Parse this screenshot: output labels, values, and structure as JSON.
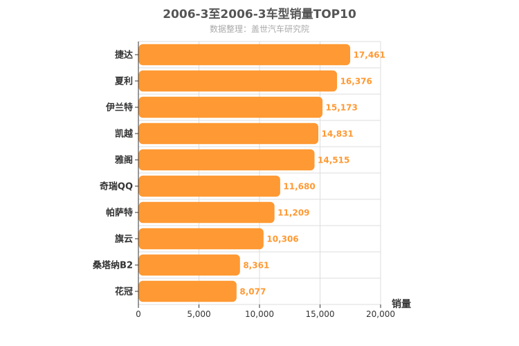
{
  "chart_data": {
    "type": "bar",
    "orientation": "horizontal",
    "title": "2006-3至2006-3车型销量TOP10",
    "subtitle": "数据整理：盖世汽车研究院",
    "xlabel": "销量",
    "ylabel": "",
    "categories": [
      "捷达",
      "夏利",
      "伊兰特",
      "凯越",
      "雅阁",
      "奇瑞QQ",
      "帕萨特",
      "旗云",
      "桑塔纳B2",
      "花冠"
    ],
    "values": [
      17461,
      16376,
      15173,
      14831,
      14515,
      11680,
      11209,
      10306,
      8361,
      8077
    ],
    "value_labels": [
      "17,461",
      "16,376",
      "15,173",
      "14,831",
      "14,515",
      "11,680",
      "11,209",
      "10,306",
      "8,361",
      "8,077"
    ],
    "xlim": [
      0,
      20000
    ],
    "ticks": [
      0,
      5000,
      10000,
      15000,
      20000
    ],
    "tick_labels": [
      "0",
      "5,000",
      "10,000",
      "15,000",
      "20,000"
    ],
    "grid": true,
    "legend": "none",
    "colors": {
      "bar": "#ff9933",
      "label": "#ff9933",
      "grid": "#dddddd",
      "axis": "#333333"
    }
  }
}
